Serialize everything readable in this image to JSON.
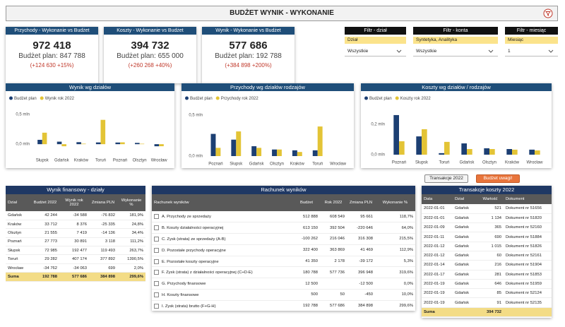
{
  "header": {
    "title": "BUDŻET WYNIK - WYKONANIE"
  },
  "kpis": [
    {
      "title": "Przychody - Wykonanie vs Budżet",
      "value": "972 418",
      "plan": "Budżet plan: 847 788",
      "change": "(+124 630 +15%)"
    },
    {
      "title": "Koszty - Wykonanie vs Budżet",
      "value": "394 732",
      "plan": "Budżet plan: 655 000",
      "change": "(+260 268 +40%)"
    },
    {
      "title": "Wynik - Wykonanie vs Budżet",
      "value": "577 686",
      "plan": "Budżet plan: 192 788",
      "change": "(+384 898 +200%)"
    }
  ],
  "filters": [
    {
      "title": "Filtr - dział",
      "label": "Dział",
      "selected": "Wszystkie"
    },
    {
      "title": "Filtr - konta",
      "label": "Syntetyka, Analityka",
      "selected": "Wszystkie"
    },
    {
      "title": "Filtr - miesiąc",
      "label": "Miesiąc",
      "selected": "1"
    }
  ],
  "chart_data": [
    {
      "type": "bar",
      "title": "Wynik wg działów",
      "categories": [
        "Słupsk",
        "Gdańsk",
        "Kraków",
        "Toruń",
        "Poznań",
        "Olsztyn",
        "Wrocław"
      ],
      "series": [
        {
          "name": "Budżet plan",
          "color": "#1c3f73",
          "values": [
            72985,
            42244,
            33712,
            29282,
            27773,
            21555,
            -34762
          ]
        },
        {
          "name": "Wynik rok 2022",
          "color": "#e3c436",
          "values": [
            192477,
            -34588,
            8376,
            407174,
            30891,
            7419,
            -34063
          ]
        }
      ],
      "ylim": [
        -140000,
        640000
      ],
      "yticks": [
        {
          "value": 0,
          "label": "0,0 mln"
        },
        {
          "value": 500000,
          "label": "0,5 mln"
        }
      ],
      "grid": false,
      "legend": "top-left"
    },
    {
      "type": "bar",
      "title": "Przychody wg działów rodzajów",
      "categories": [
        "Poznań",
        "Słupsk",
        "Gdańsk",
        "Olsztyn",
        "Kraków",
        "Toruń",
        "Wrocław"
      ],
      "series": [
        {
          "name": "Budżet plan",
          "color": "#1c3f73",
          "values": [
            270000,
            200000,
            120000,
            80000,
            70000,
            70000,
            0
          ]
        },
        {
          "name": "Przychody rok 2022",
          "color": "#e3c436",
          "values": [
            100000,
            300000,
            100000,
            80000,
            50000,
            360000,
            0
          ]
        }
      ],
      "ylim": [
        0,
        610000
      ],
      "yticks": [
        {
          "value": 0,
          "label": "0,0 mln"
        },
        {
          "value": 500000,
          "label": "0,5 mln"
        }
      ],
      "grid": false,
      "legend": "top-left"
    },
    {
      "type": "bar",
      "title": "Koszty wg działów / rodzajów",
      "categories": [
        "Poznań",
        "Słupsk",
        "Toruń",
        "Gdańsk",
        "Olsztyn",
        "Kraków",
        "Wrocław"
      ],
      "series": [
        {
          "name": "Budżet plan",
          "color": "#1c3f73",
          "values": [
            260000,
            120000,
            10000,
            74000,
            42000,
            37000,
            33000
          ]
        },
        {
          "name": "Koszty rok 2022",
          "color": "#e3c436",
          "values": [
            88000,
            167000,
            84000,
            37000,
            37000,
            33000,
            28000
          ]
        }
      ],
      "ylim": [
        0,
        320000
      ],
      "yticks": [
        {
          "value": 0,
          "label": "0,0 mln"
        },
        {
          "value": 200000,
          "label": "0,2 mln"
        }
      ],
      "grid": false,
      "legend": "top-left"
    }
  ],
  "buttons": [
    "Transakcje 2022",
    "Budżet uwagi!"
  ],
  "tables": [
    {
      "title": "Wynik finansowy - działy",
      "columns": [
        "Dział",
        "Budżet 2022",
        "Wynik rok 2022",
        "Zmiana PLN",
        "Wykonanie %"
      ],
      "rows": [
        [
          "Gdańsk",
          "42 244",
          "-34 588",
          "-76 832",
          "181,9%"
        ],
        [
          "Kraków",
          "33 712",
          "8 376",
          "-25 335",
          "24,8%"
        ],
        [
          "Olsztyn",
          "21 555",
          "7 419",
          "-14 136",
          "34,4%"
        ],
        [
          "Poznań",
          "27 773",
          "30 891",
          "3 118",
          "111,2%"
        ],
        [
          "Słupsk",
          "72 985",
          "192 477",
          "119 493",
          "263,7%"
        ],
        [
          "Toruń",
          "29 282",
          "407 174",
          "377 892",
          "1390,5%"
        ],
        [
          "Wrocław",
          "-34 762",
          "-34 063",
          "699",
          "2,0%"
        ]
      ],
      "total": [
        "Suma",
        "192 788",
        "577 686",
        "384 898",
        "299,6%"
      ]
    },
    {
      "title": "Rachunek wyników",
      "columns": [
        "Rachunek wyników",
        "Budżet",
        "Rok 2022",
        "Zmiana PLN",
        "Wykonanie %"
      ],
      "rows": [
        [
          "A. Przychody ze sprzedaży",
          "512 888",
          "608 549",
          "95 661",
          "118,7%"
        ],
        [
          "B. Koszty działalności operacyjnej",
          "613 150",
          "392 504",
          "-220 646",
          "64,0%"
        ],
        [
          "C. Zysk (strata) ze sprzedaży (A-B)",
          "-100 262",
          "216 046",
          "316 308",
          "215,5%"
        ],
        [
          "D. Pozostałe przychody operacyjne",
          "322 400",
          "363 869",
          "41 469",
          "112,9%"
        ],
        [
          "E. Pozostałe koszty operacyjne",
          "41 350",
          "2 178",
          "-39 172",
          "5,3%"
        ],
        [
          "F. Zysk (strata) z działalności operacyjnej (C+D-E)",
          "180 788",
          "577 736",
          "396 948",
          "319,6%"
        ],
        [
          "G. Przychody finansowe",
          "12 500",
          null,
          "-12 500",
          "0,0%"
        ],
        [
          "H. Koszty finansowe",
          "500",
          "50",
          "-450",
          "10,0%"
        ],
        [
          "I. Zysk (strata) brutto (F+G-H)",
          "192 788",
          "577 686",
          "384 898",
          "299,6%"
        ]
      ]
    },
    {
      "title": "Transakcje koszty 2022",
      "columns": [
        "Data",
        "Dział",
        "Wartość",
        "Dokument"
      ],
      "rows": [
        [
          "2022-01-01",
          "Gdańsk",
          "521",
          "Dokument nr 51656"
        ],
        [
          "2022-01-01",
          "Gdańsk",
          "1 134",
          "Dokument nr 51820"
        ],
        [
          "2022-01-09",
          "Gdańsk",
          "365",
          "Dokument nr 52160"
        ],
        [
          "2022-01-11",
          "Gdańsk",
          "690",
          "Dokument nr 51884"
        ],
        [
          "2022-01-12",
          "Gdańsk",
          "1 015",
          "Dokument nr 51826"
        ],
        [
          "2022-01-12",
          "Gdańsk",
          "60",
          "Dokument nr 52161"
        ],
        [
          "2022-01-14",
          "Gdańsk",
          "216",
          "Dokument nr 51904"
        ],
        [
          "2022-01-17",
          "Gdańsk",
          "281",
          "Dokument nr 51853"
        ],
        [
          "2022-01-19",
          "Gdańsk",
          "646",
          "Dokument nr 51959"
        ],
        [
          "2022-01-19",
          "Gdańsk",
          "85",
          "Dokument nr 52124"
        ],
        [
          "2022-01-19",
          "Gdańsk",
          "91",
          "Dokument nr 52135"
        ]
      ],
      "total": [
        "Suma",
        null,
        "394 732",
        null
      ]
    }
  ]
}
